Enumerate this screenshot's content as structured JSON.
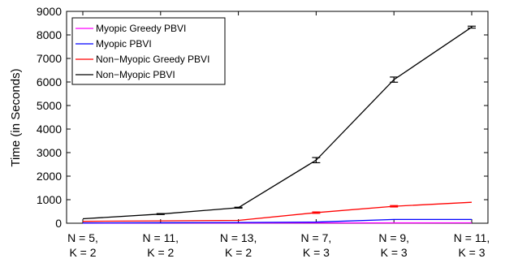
{
  "chart_data": {
    "type": "line",
    "ylabel": "Time (in Seconds)",
    "xlabel": "",
    "ylim": [
      0,
      9000
    ],
    "yticks": [
      0,
      1000,
      2000,
      3000,
      4000,
      5000,
      6000,
      7000,
      8000,
      9000
    ],
    "categories": [
      [
        "N = 5,",
        "K = 2"
      ],
      [
        "N = 11,",
        "K = 2"
      ],
      [
        "N = 13,",
        "K = 2"
      ],
      [
        "N = 7,",
        "K = 3"
      ],
      [
        "N = 9,",
        "K = 3"
      ],
      [
        "N = 11,",
        "K = 3"
      ]
    ],
    "legend_position": "top-left",
    "grid": false,
    "series": [
      {
        "name": "Myopic Greedy PBVI",
        "color": "#ff00ff",
        "values": [
          5,
          8,
          10,
          12,
          15,
          18
        ],
        "errors": [
          0,
          0,
          0,
          0,
          0,
          0
        ]
      },
      {
        "name": "Myopic PBVI",
        "color": "#0000ff",
        "values": [
          10,
          20,
          30,
          50,
          160,
          160
        ],
        "errors": [
          0,
          0,
          0,
          0,
          0,
          0
        ]
      },
      {
        "name": "Non−Myopic Greedy PBVI",
        "color": "#ff0000",
        "values": [
          80,
          100,
          120,
          450,
          720,
          890
        ],
        "errors": [
          0,
          0,
          0,
          30,
          30,
          0
        ]
      },
      {
        "name": "Non−Myopic PBVI",
        "color": "#000000",
        "values": [
          190,
          390,
          660,
          2680,
          6100,
          8330
        ],
        "errors": [
          0,
          20,
          20,
          110,
          110,
          40
        ]
      }
    ]
  }
}
